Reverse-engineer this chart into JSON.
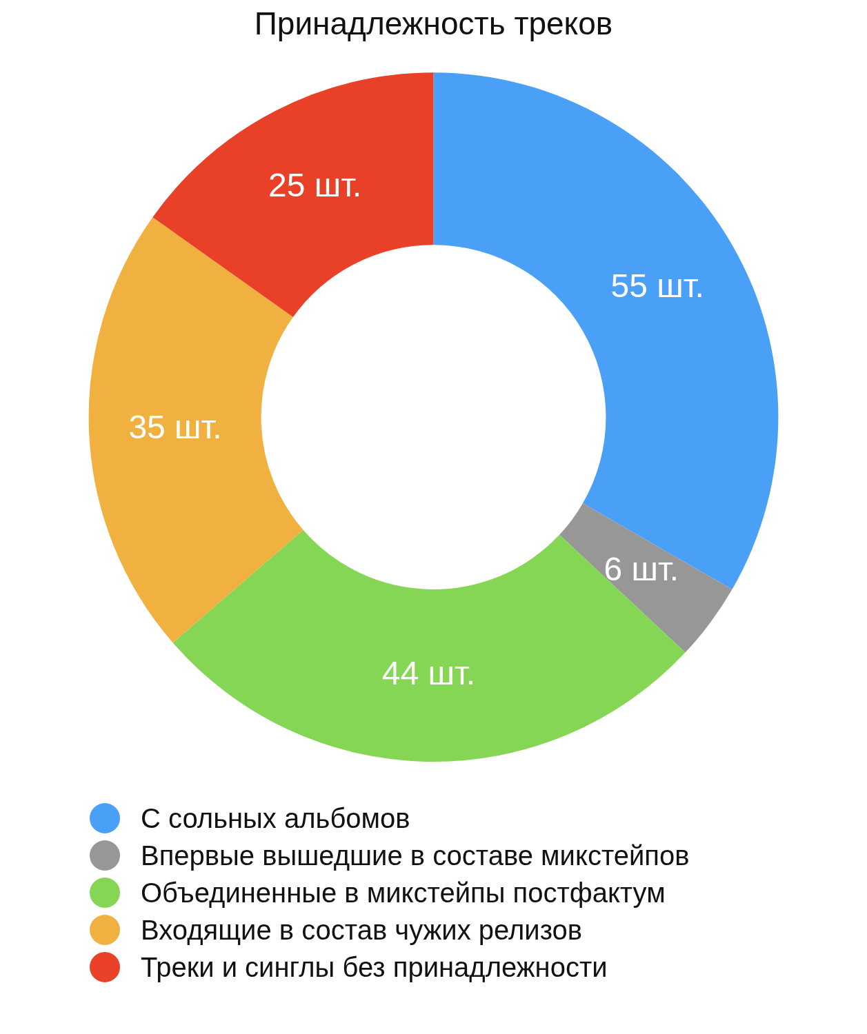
{
  "chart_data": {
    "type": "donut",
    "title": "Принадлежность треков",
    "categories": [
      "С сольных альбомов",
      "Впервые вышедшие в составе микстейпов",
      "Объединенные в микстейпы постфактум",
      "Входящие в состав чужих релизов",
      "Треки и синглы без принадлежности"
    ],
    "values": [
      55,
      6,
      44,
      35,
      25
    ],
    "colors": [
      "#4a9ff7",
      "#979797",
      "#84d654",
      "#f0b140",
      "#e94128"
    ],
    "value_labels": [
      "55 шт.",
      "6 шт.",
      "44 шт.",
      "35 шт.",
      "25 шт."
    ],
    "legend": "bottom"
  }
}
